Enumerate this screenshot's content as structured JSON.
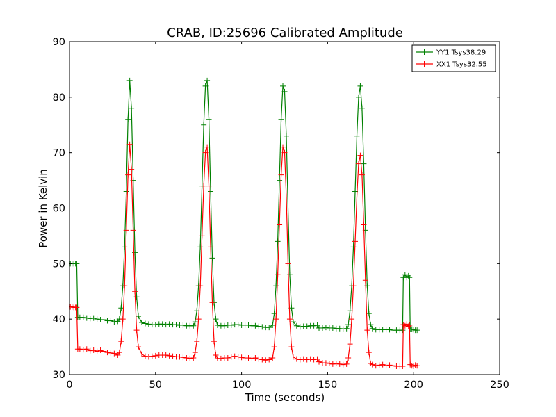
{
  "chart_data": {
    "type": "line",
    "title": "CRAB, ID:25696 Calibrated Amplitude",
    "xlabel": "Time (seconds)",
    "ylabel": "Power in Kelvin",
    "xlim": [
      0,
      250
    ],
    "ylim": [
      30,
      90
    ],
    "xticks": [
      0,
      50,
      100,
      150,
      200,
      250
    ],
    "yticks": [
      30,
      40,
      50,
      60,
      70,
      80,
      90
    ],
    "grid": false,
    "legend_position": "top-right",
    "marker": "plus",
    "series": [
      {
        "name": "YY1 Tsys38.29",
        "color": "#008000",
        "points": [
          [
            0.5,
            50
          ],
          [
            1.5,
            50
          ],
          [
            2.5,
            50
          ],
          [
            3.5,
            50
          ],
          [
            4.2,
            50
          ],
          [
            4.8,
            40.3
          ],
          [
            6,
            40.3
          ],
          [
            8,
            40.3
          ],
          [
            10,
            40.2
          ],
          [
            12,
            40.1
          ],
          [
            14,
            40.2
          ],
          [
            16,
            40
          ],
          [
            18,
            39.9
          ],
          [
            20,
            39.9
          ],
          [
            22,
            39.7
          ],
          [
            24,
            39.7
          ],
          [
            26,
            39.5
          ],
          [
            28,
            39.6
          ],
          [
            29,
            40
          ],
          [
            30,
            42
          ],
          [
            31,
            46
          ],
          [
            32,
            53
          ],
          [
            33,
            63
          ],
          [
            34,
            76
          ],
          [
            35,
            83
          ],
          [
            36,
            78
          ],
          [
            37,
            65
          ],
          [
            38,
            52
          ],
          [
            39,
            44
          ],
          [
            40,
            40.5
          ],
          [
            42,
            39.4
          ],
          [
            44,
            39.2
          ],
          [
            46,
            39.1
          ],
          [
            48,
            39
          ],
          [
            50,
            39
          ],
          [
            52,
            39.1
          ],
          [
            54,
            39.1
          ],
          [
            56,
            39
          ],
          [
            58,
            39.1
          ],
          [
            60,
            39
          ],
          [
            62,
            39
          ],
          [
            64,
            38.9
          ],
          [
            66,
            38.9
          ],
          [
            68,
            38.8
          ],
          [
            70,
            38.8
          ],
          [
            72,
            38.8
          ],
          [
            73,
            39.5
          ],
          [
            74,
            41.5
          ],
          [
            75,
            46
          ],
          [
            76,
            53
          ],
          [
            77,
            64
          ],
          [
            78,
            75
          ],
          [
            79,
            82
          ],
          [
            80,
            83
          ],
          [
            81,
            76
          ],
          [
            82,
            63
          ],
          [
            83,
            51
          ],
          [
            84,
            43
          ],
          [
            85,
            40
          ],
          [
            86,
            38.9
          ],
          [
            88,
            38.8
          ],
          [
            90,
            38.8
          ],
          [
            92,
            38.9
          ],
          [
            94,
            38.9
          ],
          [
            96,
            39
          ],
          [
            98,
            39
          ],
          [
            100,
            38.9
          ],
          [
            102,
            38.9
          ],
          [
            104,
            38.9
          ],
          [
            106,
            38.8
          ],
          [
            108,
            38.8
          ],
          [
            110,
            38.7
          ],
          [
            112,
            38.6
          ],
          [
            114,
            38.5
          ],
          [
            116,
            38.5
          ],
          [
            118,
            38.9
          ],
          [
            119,
            41
          ],
          [
            120,
            46
          ],
          [
            121,
            54
          ],
          [
            122,
            65
          ],
          [
            123,
            76
          ],
          [
            124,
            82
          ],
          [
            125,
            81
          ],
          [
            126,
            73
          ],
          [
            127,
            60
          ],
          [
            128,
            48
          ],
          [
            129,
            42
          ],
          [
            130,
            39.5
          ],
          [
            132,
            38.8
          ],
          [
            134,
            38.6
          ],
          [
            136,
            38.7
          ],
          [
            138,
            38.7
          ],
          [
            140,
            38.8
          ],
          [
            142,
            38.8
          ],
          [
            144,
            38.9
          ],
          [
            145,
            38.4
          ],
          [
            147,
            38.4
          ],
          [
            149,
            38.5
          ],
          [
            151,
            38.4
          ],
          [
            153,
            38.4
          ],
          [
            155,
            38.3
          ],
          [
            157,
            38.3
          ],
          [
            159,
            38.2
          ],
          [
            161,
            38.3
          ],
          [
            162,
            39
          ],
          [
            163,
            41.5
          ],
          [
            164,
            46
          ],
          [
            165,
            53
          ],
          [
            166,
            63
          ],
          [
            167,
            73
          ],
          [
            168,
            80
          ],
          [
            169,
            82
          ],
          [
            170,
            78
          ],
          [
            171,
            68
          ],
          [
            172,
            56
          ],
          [
            173,
            46
          ],
          [
            174,
            41
          ],
          [
            175,
            39
          ],
          [
            176,
            38.3
          ],
          [
            178,
            38.1
          ],
          [
            180,
            38.1
          ],
          [
            182,
            38.1
          ],
          [
            184,
            38.1
          ],
          [
            186,
            38.1
          ],
          [
            188,
            38
          ],
          [
            190,
            38
          ],
          [
            192,
            38
          ],
          [
            193.6,
            38
          ],
          [
            194,
            47.5
          ],
          [
            195,
            48
          ],
          [
            196,
            47.5
          ],
          [
            197,
            47.8
          ],
          [
            197.6,
            47.5
          ],
          [
            198,
            38.2
          ],
          [
            199,
            38.2
          ],
          [
            200,
            38.1
          ],
          [
            201,
            38
          ],
          [
            202,
            38
          ]
        ]
      },
      {
        "name": "XX1 Tsys32.55",
        "color": "#ff0000",
        "points": [
          [
            0.5,
            42.2
          ],
          [
            1.5,
            42.2
          ],
          [
            2.5,
            42.1
          ],
          [
            3.5,
            42.1
          ],
          [
            4.2,
            42.1
          ],
          [
            4.8,
            34.6
          ],
          [
            6,
            34.6
          ],
          [
            8,
            34.5
          ],
          [
            10,
            34.6
          ],
          [
            12,
            34.3
          ],
          [
            14,
            34.4
          ],
          [
            16,
            34.2
          ],
          [
            18,
            34.4
          ],
          [
            20,
            34.2
          ],
          [
            22,
            34
          ],
          [
            24,
            33.9
          ],
          [
            26,
            33.8
          ],
          [
            28,
            33.5
          ],
          [
            29,
            34
          ],
          [
            30,
            36
          ],
          [
            31,
            40
          ],
          [
            32,
            46
          ],
          [
            33,
            56
          ],
          [
            34,
            66
          ],
          [
            35,
            71.5
          ],
          [
            36,
            67
          ],
          [
            37,
            56
          ],
          [
            38,
            45
          ],
          [
            39,
            38
          ],
          [
            40,
            35
          ],
          [
            42,
            33.7
          ],
          [
            44,
            33.3
          ],
          [
            46,
            33.2
          ],
          [
            48,
            33.3
          ],
          [
            50,
            33.4
          ],
          [
            52,
            33.5
          ],
          [
            54,
            33.5
          ],
          [
            56,
            33.5
          ],
          [
            58,
            33.4
          ],
          [
            60,
            33.3
          ],
          [
            62,
            33.2
          ],
          [
            64,
            33.2
          ],
          [
            66,
            33.1
          ],
          [
            68,
            33
          ],
          [
            70,
            32.9
          ],
          [
            72,
            33
          ],
          [
            73,
            34
          ],
          [
            74,
            36
          ],
          [
            75,
            40
          ],
          [
            76,
            46
          ],
          [
            77,
            55
          ],
          [
            78,
            64
          ],
          [
            79,
            70
          ],
          [
            80,
            71
          ],
          [
            81,
            64
          ],
          [
            82,
            53
          ],
          [
            83,
            43
          ],
          [
            84,
            36
          ],
          [
            85,
            33.5
          ],
          [
            86,
            32.9
          ],
          [
            88,
            32.9
          ],
          [
            90,
            33
          ],
          [
            92,
            33
          ],
          [
            94,
            33.2
          ],
          [
            96,
            33.3
          ],
          [
            98,
            33.2
          ],
          [
            100,
            33.1
          ],
          [
            102,
            33
          ],
          [
            104,
            33
          ],
          [
            106,
            32.9
          ],
          [
            108,
            33
          ],
          [
            110,
            32.8
          ],
          [
            112,
            32.7
          ],
          [
            114,
            32.6
          ],
          [
            116,
            32.7
          ],
          [
            118,
            33
          ],
          [
            119,
            35
          ],
          [
            120,
            40
          ],
          [
            121,
            48
          ],
          [
            122,
            57
          ],
          [
            123,
            66
          ],
          [
            124,
            71
          ],
          [
            125,
            70
          ],
          [
            126,
            62
          ],
          [
            127,
            50
          ],
          [
            128,
            40
          ],
          [
            129,
            35
          ],
          [
            130,
            33.2
          ],
          [
            132,
            32.8
          ],
          [
            134,
            32.7
          ],
          [
            136,
            32.8
          ],
          [
            138,
            32.7
          ],
          [
            140,
            32.8
          ],
          [
            142,
            32.7
          ],
          [
            144,
            32.8
          ],
          [
            145,
            32.3
          ],
          [
            147,
            32.1
          ],
          [
            149,
            32.1
          ],
          [
            151,
            32
          ],
          [
            153,
            31.9
          ],
          [
            155,
            32
          ],
          [
            157,
            31.9
          ],
          [
            159,
            31.8
          ],
          [
            161,
            31.9
          ],
          [
            162,
            33
          ],
          [
            163,
            35.5
          ],
          [
            164,
            40
          ],
          [
            165,
            46
          ],
          [
            166,
            54
          ],
          [
            167,
            62
          ],
          [
            168,
            68
          ],
          [
            169,
            69.5
          ],
          [
            170,
            66
          ],
          [
            171,
            57
          ],
          [
            172,
            47
          ],
          [
            173,
            38
          ],
          [
            174,
            34
          ],
          [
            175,
            32
          ],
          [
            176,
            31.8
          ],
          [
            178,
            31.6
          ],
          [
            180,
            31.7
          ],
          [
            182,
            31.8
          ],
          [
            184,
            31.6
          ],
          [
            186,
            31.7
          ],
          [
            188,
            31.6
          ],
          [
            190,
            31.5
          ],
          [
            192,
            31.5
          ],
          [
            193.6,
            31.5
          ],
          [
            194,
            39
          ],
          [
            195,
            38.8
          ],
          [
            196,
            39.1
          ],
          [
            197,
            38.7
          ],
          [
            197.6,
            38.9
          ],
          [
            198,
            31.8
          ],
          [
            199,
            31.6
          ],
          [
            200,
            31.5
          ],
          [
            201,
            31.7
          ],
          [
            202,
            31.6
          ]
        ]
      }
    ]
  }
}
